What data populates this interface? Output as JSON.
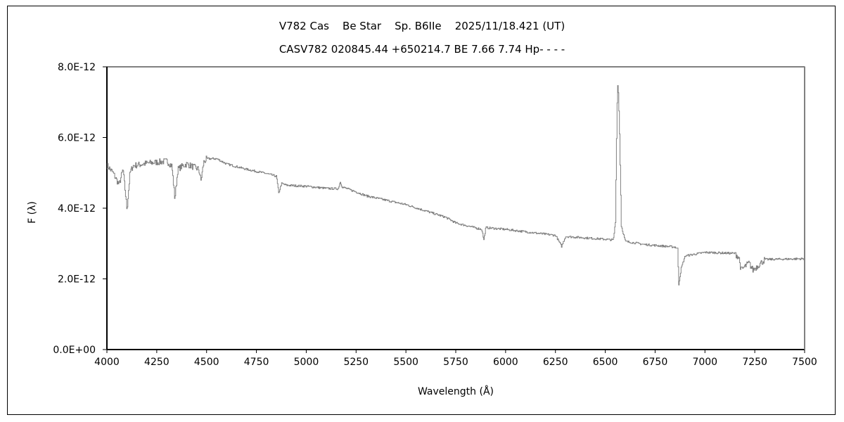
{
  "chart_data": {
    "type": "line",
    "title": "V782 Cas    Be Star    Sp. B6IIe    2025/11/18.421 (UT)",
    "subtitle": "CASV782 020845.44 +650214.7 BE 7.66 7.74 Hp- - - -",
    "xlabel": "Wavelength (Å)",
    "ylabel": "F (λ)",
    "xlim": [
      4000,
      7500
    ],
    "ylim": [
      0,
      8e-12
    ],
    "x_ticks": [
      "4000",
      "4250",
      "4500",
      "4750",
      "5000",
      "5250",
      "5500",
      "5750",
      "6000",
      "6250",
      "6500",
      "6750",
      "7000",
      "7250",
      "7500"
    ],
    "y_ticks": [
      "0.0E+00",
      "2.0E-12",
      "4.0E-12",
      "6.0E-12",
      "8.0E-12"
    ],
    "grid": false,
    "line_color": "#808080",
    "flux_unit_scale": 1e-12,
    "series": [
      {
        "name": "spectrum",
        "x": [
          4000,
          4030,
          4060,
          4080,
          4100,
          4115,
          4130,
          4200,
          4300,
          4325,
          4340,
          4355,
          4380,
          4400,
          4460,
          4471,
          4485,
          4500,
          4550,
          4600,
          4700,
          4800,
          4850,
          4861,
          4875,
          4900,
          5000,
          5100,
          5160,
          5169,
          5180,
          5250,
          5300,
          5500,
          5700,
          5750,
          5880,
          5890,
          5900,
          6000,
          6250,
          6280,
          6300,
          6500,
          6540,
          6550,
          6556,
          6560,
          6563,
          6566,
          6570,
          6580,
          6600,
          6700,
          6850,
          6862,
          6868,
          6880,
          6900,
          7000,
          7150,
          7170,
          7180,
          7220,
          7240,
          7260,
          7300,
          7500
        ],
        "y": [
          5.21,
          5.0,
          4.66,
          5.1,
          3.96,
          5.0,
          5.2,
          5.27,
          5.33,
          5.2,
          4.26,
          5.1,
          5.2,
          5.25,
          5.1,
          4.78,
          5.3,
          5.4,
          5.4,
          5.25,
          5.1,
          4.98,
          4.9,
          4.42,
          4.7,
          4.65,
          4.62,
          4.56,
          4.55,
          4.75,
          4.6,
          4.46,
          4.35,
          4.1,
          3.74,
          3.58,
          3.4,
          3.1,
          3.45,
          3.4,
          3.23,
          2.92,
          3.2,
          3.12,
          3.1,
          3.6,
          6.0,
          7.3,
          7.6,
          7.1,
          6.4,
          3.5,
          3.06,
          2.97,
          2.9,
          2.85,
          1.85,
          2.3,
          2.65,
          2.75,
          2.72,
          2.6,
          2.25,
          2.45,
          2.25,
          2.35,
          2.55,
          2.57
        ]
      }
    ]
  }
}
